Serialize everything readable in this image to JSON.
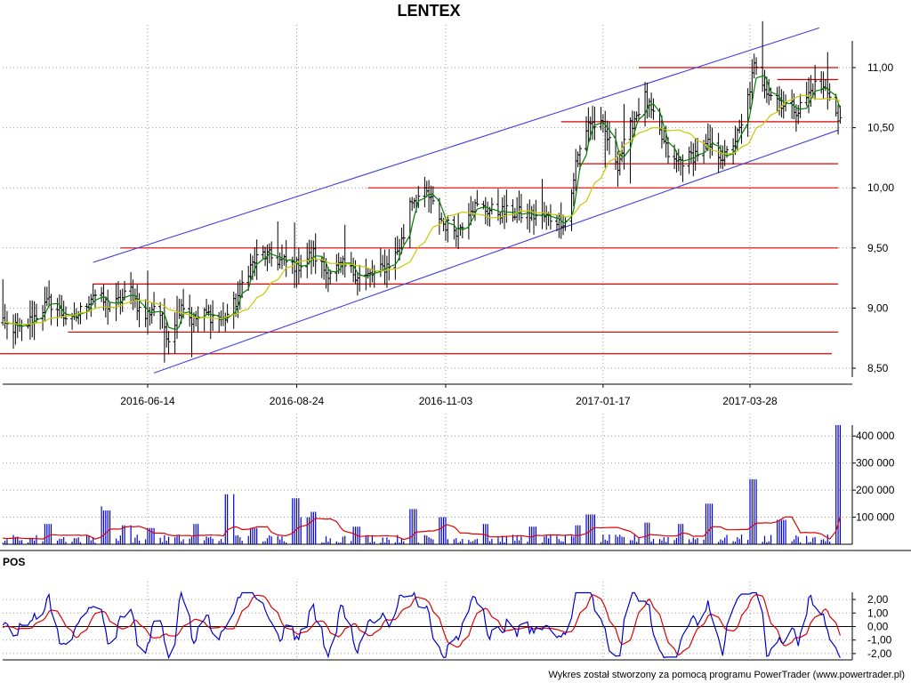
{
  "chart_data": [
    {
      "panel": "price",
      "type": "ohlc",
      "title": "LENTEX",
      "ylim": [
        8.4,
        11.3
      ],
      "y_ticks": [
        "11,00",
        "10,50",
        "10,00",
        "9,50",
        "9,00",
        "8,50"
      ],
      "y_tick_values": [
        11.0,
        10.5,
        10.0,
        9.5,
        9.0,
        8.5
      ],
      "x_ticks": [
        "2016-06-14",
        "2016-08-24",
        "2016-11-03",
        "2017-01-17",
        "2017-03-28"
      ],
      "x_tick_dates": [
        "2016-06-14",
        "2016-08-24",
        "2016-11-03",
        "2017-01-17",
        "2017-03-28"
      ],
      "date_range": [
        "2016-04-01",
        "2017-05-10"
      ],
      "colors": {
        "bars": "#000000",
        "fast_ma": "#008000",
        "slow_ma": "#c8c800",
        "trend_channel": "#4040e0",
        "support_resistance": "#e00000"
      },
      "trend_channel": [
        {
          "from": [
            "2016-05-19",
            9.38
          ],
          "to": [
            "2017-04-30",
            11.33
          ]
        },
        {
          "from": [
            "2016-06-17",
            8.46
          ],
          "to": [
            "2017-05-09",
            10.48
          ]
        }
      ],
      "horizontal_levels": [
        {
          "y": 11.0,
          "from": "2017-02-03",
          "to": "2017-05-09"
        },
        {
          "y": 10.9,
          "from": "2017-04-10",
          "to": "2017-05-09"
        },
        {
          "y": 10.55,
          "from": "2016-12-28",
          "to": "2017-05-09"
        },
        {
          "y": 10.2,
          "from": "2017-01-05",
          "to": "2017-05-09"
        },
        {
          "y": 10.0,
          "from": "2016-09-27",
          "to": "2017-05-09"
        },
        {
          "y": 9.5,
          "from": "2016-06-01",
          "to": "2017-05-09"
        },
        {
          "y": 9.2,
          "from": "2016-05-19",
          "to": "2017-05-09"
        },
        {
          "y": 8.8,
          "from": "2016-05-07",
          "to": "2017-05-09"
        },
        {
          "y": 8.62,
          "from": "2016-04-01",
          "to": "2017-05-06"
        }
      ],
      "price_path": [
        [
          "2016-04-01",
          8.88
        ],
        [
          "2016-04-15",
          8.82
        ],
        [
          "2016-04-28",
          9.05
        ],
        [
          "2016-05-09",
          8.88
        ],
        [
          "2016-05-19",
          9.12
        ],
        [
          "2016-05-28",
          9.0
        ],
        [
          "2016-06-06",
          9.15
        ],
        [
          "2016-06-12",
          8.9
        ],
        [
          "2016-06-18",
          9.05
        ],
        [
          "2016-06-24",
          8.75
        ],
        [
          "2016-06-30",
          9.05
        ],
        [
          "2016-07-05",
          8.9
        ],
        [
          "2016-07-12",
          8.95
        ],
        [
          "2016-07-20",
          8.9
        ],
        [
          "2016-07-26",
          9.05
        ],
        [
          "2016-07-31",
          9.3
        ],
        [
          "2016-08-07",
          9.45
        ],
        [
          "2016-08-15",
          9.4
        ],
        [
          "2016-08-24",
          9.35
        ],
        [
          "2016-09-01",
          9.45
        ],
        [
          "2016-09-07",
          9.3
        ],
        [
          "2016-09-15",
          9.35
        ],
        [
          "2016-09-25",
          9.25
        ],
        [
          "2016-10-02",
          9.3
        ],
        [
          "2016-10-09",
          9.4
        ],
        [
          "2016-10-14",
          9.6
        ],
        [
          "2016-10-17",
          9.9
        ],
        [
          "2016-10-25",
          9.95
        ],
        [
          "2016-11-02",
          9.7
        ],
        [
          "2016-11-09",
          9.65
        ],
        [
          "2016-11-15",
          9.85
        ],
        [
          "2016-11-28",
          9.8
        ],
        [
          "2016-12-10",
          9.78
        ],
        [
          "2016-12-23",
          9.75
        ],
        [
          "2016-12-31",
          9.72
        ],
        [
          "2017-01-04",
          10.2
        ],
        [
          "2017-01-10",
          10.55
        ],
        [
          "2017-01-17",
          10.5
        ],
        [
          "2017-01-24",
          10.2
        ],
        [
          "2017-01-31",
          10.55
        ],
        [
          "2017-02-06",
          10.75
        ],
        [
          "2017-02-13",
          10.45
        ],
        [
          "2017-02-19",
          10.2
        ],
        [
          "2017-02-27",
          10.25
        ],
        [
          "2017-03-08",
          10.35
        ],
        [
          "2017-03-16",
          10.25
        ],
        [
          "2017-03-24",
          10.5
        ],
        [
          "2017-03-30",
          11.0
        ],
        [
          "2017-04-06",
          10.8
        ],
        [
          "2017-04-13",
          10.7
        ],
        [
          "2017-04-20",
          10.65
        ],
        [
          "2017-04-28",
          10.85
        ],
        [
          "2017-05-05",
          10.8
        ],
        [
          "2017-05-09",
          10.55
        ]
      ]
    },
    {
      "panel": "volume",
      "type": "bar",
      "ylim": [
        0,
        450000
      ],
      "y_ticks": [
        "400 000",
        "300 000",
        "200 000",
        "100 000"
      ],
      "y_tick_values": [
        400000,
        300000,
        200000,
        100000
      ],
      "colors": {
        "bars": "#0000cc",
        "average": "#e00000"
      },
      "base_level": 18000,
      "spikes": [
        [
          "2016-04-28",
          75000
        ],
        [
          "2016-05-24",
          140000
        ],
        [
          "2016-05-26",
          125000
        ],
        [
          "2016-06-04",
          70000
        ],
        [
          "2016-06-16",
          60000
        ],
        [
          "2016-07-08",
          75000
        ],
        [
          "2016-07-23",
          185000
        ],
        [
          "2016-08-04",
          60000
        ],
        [
          "2016-08-24",
          170000
        ],
        [
          "2016-08-28",
          100000
        ],
        [
          "2016-09-02",
          120000
        ],
        [
          "2016-09-22",
          65000
        ],
        [
          "2016-10-18",
          130000
        ],
        [
          "2016-11-01",
          100000
        ],
        [
          "2016-11-21",
          75000
        ],
        [
          "2016-12-15",
          65000
        ],
        [
          "2017-01-06",
          70000
        ],
        [
          "2017-01-11",
          110000
        ],
        [
          "2017-02-06",
          80000
        ],
        [
          "2017-02-24",
          75000
        ],
        [
          "2017-03-09",
          150000
        ],
        [
          "2017-03-30",
          240000
        ],
        [
          "2017-04-12",
          90000
        ],
        [
          "2017-05-09",
          440000
        ]
      ]
    },
    {
      "panel": "oscillator",
      "type": "line",
      "name": "POS",
      "ylim": [
        -2.5,
        2.7
      ],
      "y_ticks": [
        "2,00",
        "1,00",
        "0,00",
        "-1,00",
        "-2,00"
      ],
      "y_tick_values": [
        2.0,
        1.0,
        0.0,
        -1.0,
        -2.0
      ],
      "colors": {
        "line": "#0000cc",
        "signal": "#e00000",
        "zero": "#000000"
      }
    }
  ],
  "footer": "Wykres został stworzony za pomocą programu PowerTrader (www.powertrader.pl)"
}
